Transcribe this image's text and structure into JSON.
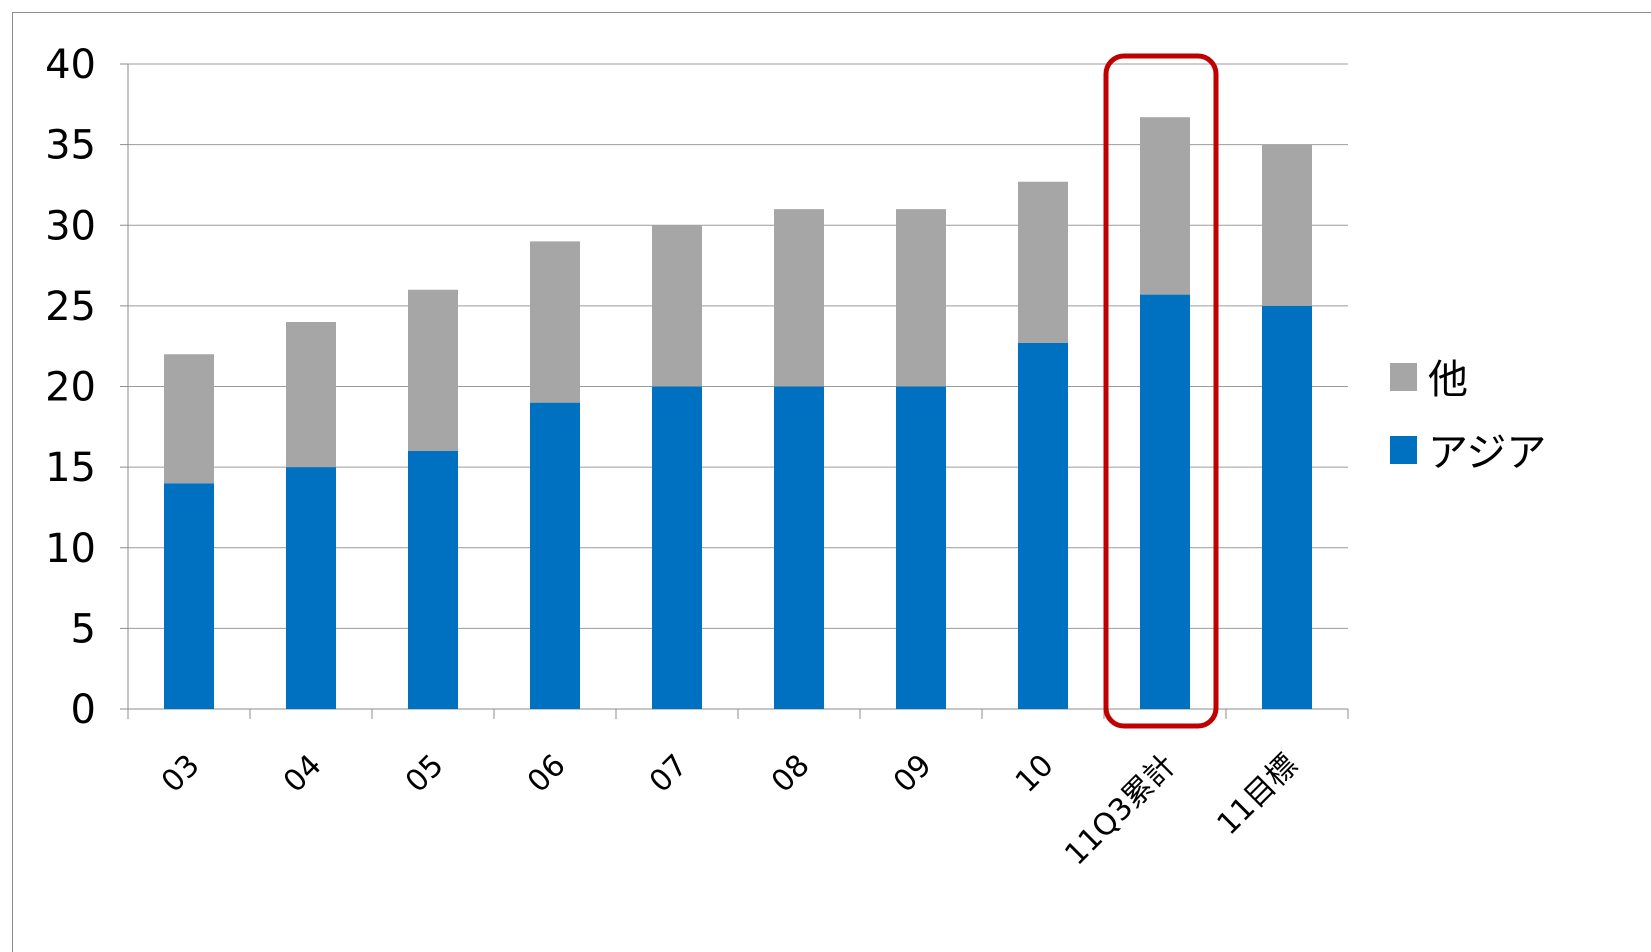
{
  "chart_data": {
    "type": "bar",
    "stacked": true,
    "categories": [
      "03",
      "04",
      "05",
      "06",
      "07",
      "08",
      "09",
      "10",
      "11Q3累計",
      "11目標"
    ],
    "series": [
      {
        "name": "アジア",
        "color": "#0070C0",
        "values": [
          14,
          15,
          16,
          19,
          20,
          20,
          20,
          22.7,
          25.7,
          25
        ]
      },
      {
        "name": "他",
        "color": "#A6A6A6",
        "values": [
          8,
          9,
          10,
          10,
          10,
          11,
          11,
          10,
          11,
          10
        ]
      }
    ],
    "ylim": [
      0,
      40
    ],
    "yticks": [
      0,
      5,
      10,
      15,
      20,
      25,
      30,
      35,
      40
    ],
    "grid": true,
    "legend_position": "right",
    "highlight_category": "11Q3累計",
    "highlight_color": "#C00000"
  }
}
